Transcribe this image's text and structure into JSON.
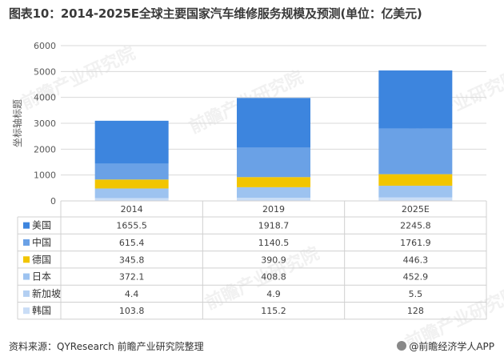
{
  "title": "图表10：2014-2025E全球主要国家汽车维修服务规模及预测(单位：亿美元)",
  "source": "资料来源：QYResearch 前瞻产业研究院整理",
  "brand": "@前瞻经济学人APP",
  "watermark": "前瞻产业研究院",
  "chart_data": {
    "type": "bar",
    "stacked": true,
    "categories": [
      "2014",
      "2019",
      "2025E"
    ],
    "ylabel": "坐标轴标题",
    "ylim": [
      0,
      6000
    ],
    "yticks": [
      0,
      1000,
      2000,
      3000,
      4000,
      5000,
      6000
    ],
    "grid": true,
    "series": [
      {
        "name": "美国",
        "values": [
          1655.5,
          1918.7,
          2245.8
        ],
        "color": "#3d85de"
      },
      {
        "name": "中国",
        "values": [
          615.4,
          1140.5,
          1761.9
        ],
        "color": "#6aa1e6"
      },
      {
        "name": "德国",
        "values": [
          345.8,
          390.9,
          446.3
        ],
        "color": "#f2c500"
      },
      {
        "name": "日本",
        "values": [
          372.1,
          408.8,
          452.9
        ],
        "color": "#9dc3f0"
      },
      {
        "name": "新加坡",
        "values": [
          4.4,
          4.9,
          5.5
        ],
        "color": "#b3cff2"
      },
      {
        "name": "韩国",
        "values": [
          103.8,
          115.2,
          128
        ],
        "color": "#c9ddf6"
      }
    ],
    "table_values": [
      [
        "1655.5",
        "1918.7",
        "2245.8"
      ],
      [
        "615.4",
        "1140.5",
        "1761.9"
      ],
      [
        "345.8",
        "390.9",
        "446.3"
      ],
      [
        "372.1",
        "408.8",
        "452.9"
      ],
      [
        "4.4",
        "4.9",
        "5.5"
      ],
      [
        "103.8",
        "115.2",
        "128"
      ]
    ]
  }
}
